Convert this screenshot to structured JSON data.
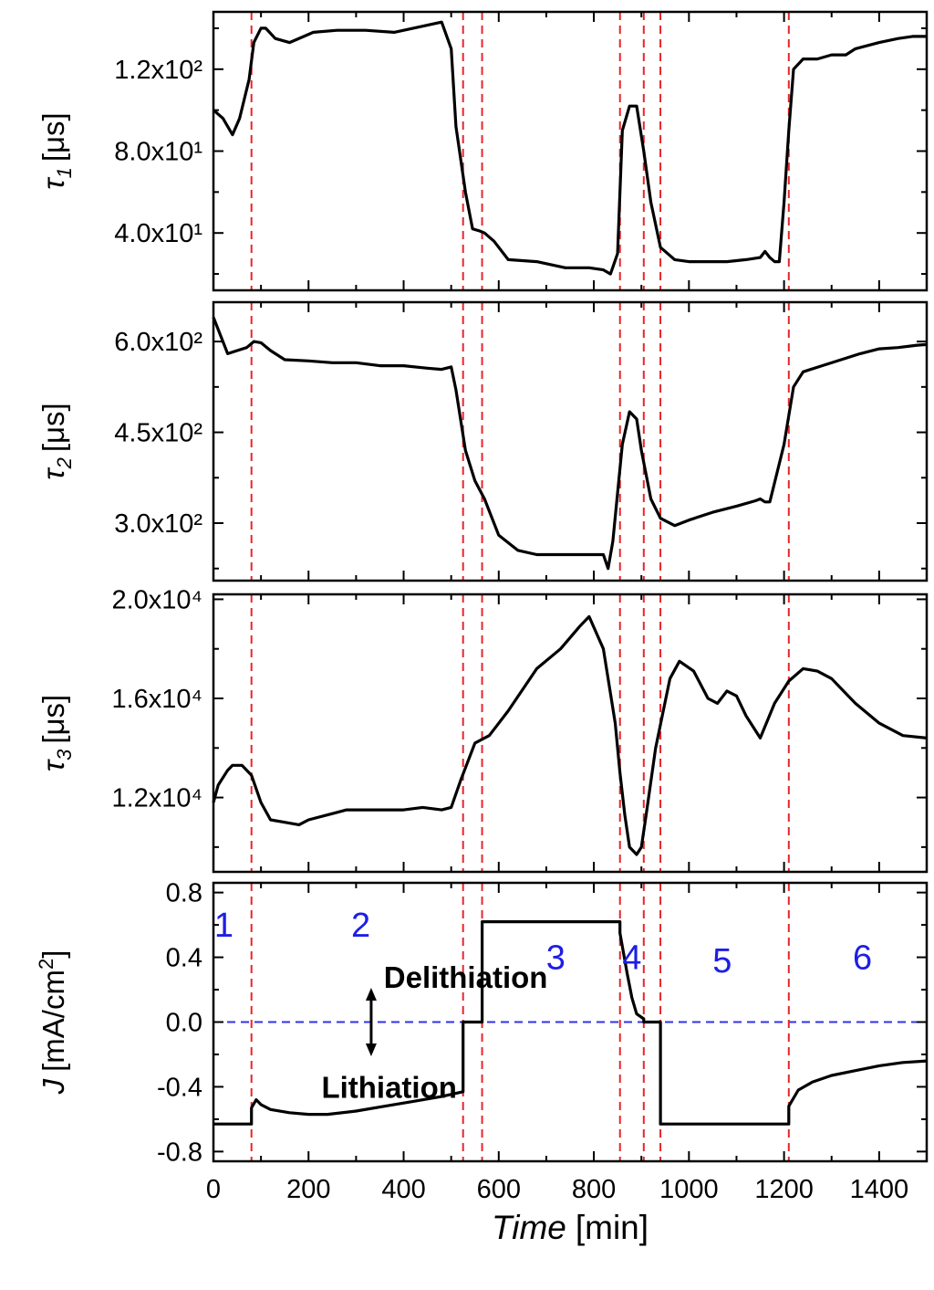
{
  "chart_data": {
    "type": "line",
    "title": "",
    "shared_x": {
      "label_italic": "Time",
      "label_unit": "[min]",
      "xlim": [
        0,
        1500
      ],
      "ticks": [
        0,
        200,
        400,
        600,
        800,
        1000,
        1200,
        1400
      ],
      "tick_labels": [
        "0",
        "200",
        "400",
        "600",
        "800",
        "1000",
        "1200",
        "1400"
      ]
    },
    "vlines": [
      80,
      525,
      565,
      855,
      905,
      940,
      1210
    ],
    "vline_color": "#e8262a",
    "line_color": "#000000",
    "panels": [
      {
        "id": "tau1",
        "ylabel_sym": "τ",
        "ylabel_sub": "1",
        "ylabel_unit": "[μs]",
        "ylim": [
          12,
          148
        ],
        "ticks": [
          40,
          80,
          120
        ],
        "tick_labels": [
          "4.0x10¹",
          "8.0x10¹",
          "1.2x10²"
        ],
        "x": [
          0,
          20,
          40,
          55,
          75,
          85,
          100,
          110,
          130,
          160,
          190,
          210,
          260,
          320,
          380,
          440,
          480,
          500,
          510,
          530,
          545,
          560,
          570,
          590,
          620,
          680,
          740,
          790,
          820,
          835,
          850,
          860,
          875,
          890,
          905,
          920,
          940,
          970,
          1000,
          1040,
          1080,
          1120,
          1150,
          1160,
          1170,
          1180,
          1190,
          1200,
          1210,
          1220,
          1240,
          1270,
          1300,
          1330,
          1350,
          1400,
          1440,
          1470,
          1500
        ],
        "y": [
          100,
          96,
          88,
          96,
          115,
          133,
          140,
          140,
          135,
          133,
          136,
          138,
          139,
          139,
          138,
          141,
          143,
          130,
          92,
          60,
          42,
          41,
          40,
          36,
          27,
          26,
          23,
          23,
          22,
          20,
          30,
          90,
          102,
          102,
          80,
          55,
          33,
          27,
          26,
          26,
          26,
          27,
          28,
          31,
          28,
          26,
          26,
          55,
          90,
          120,
          125,
          125,
          127,
          127,
          130,
          133,
          135,
          136,
          136
        ]
      },
      {
        "id": "tau2",
        "ylabel_sym": "τ",
        "ylabel_sub": "2",
        "ylabel_unit": "[μs]",
        "ylim": [
          205,
          665
        ],
        "ticks": [
          300,
          450,
          600
        ],
        "tick_labels": [
          "3.0x10²",
          "4.5x10²",
          "6.0x10²"
        ],
        "x": [
          0,
          15,
          30,
          50,
          70,
          85,
          100,
          120,
          150,
          200,
          250,
          300,
          350,
          400,
          450,
          480,
          500,
          510,
          530,
          550,
          570,
          600,
          640,
          680,
          740,
          790,
          820,
          830,
          840,
          860,
          875,
          890,
          900,
          920,
          940,
          970,
          1000,
          1050,
          1100,
          1140,
          1150,
          1160,
          1170,
          1200,
          1220,
          1240,
          1280,
          1320,
          1360,
          1400,
          1440,
          1480,
          1500
        ],
        "y": [
          640,
          610,
          580,
          585,
          590,
          600,
          598,
          585,
          570,
          568,
          565,
          565,
          560,
          560,
          556,
          554,
          558,
          520,
          420,
          370,
          340,
          280,
          255,
          248,
          248,
          248,
          248,
          225,
          270,
          430,
          484,
          472,
          420,
          340,
          308,
          296,
          305,
          318,
          328,
          337,
          340,
          335,
          335,
          430,
          525,
          550,
          560,
          570,
          580,
          588,
          590,
          594,
          595
        ]
      },
      {
        "id": "tau3",
        "ylabel_sym": "τ",
        "ylabel_sub": "3",
        "ylabel_unit": "[μs]",
        "ylim": [
          9000,
          20200
        ],
        "ticks": [
          12000,
          16000,
          20000
        ],
        "tick_labels": [
          "1.2x10⁴",
          "1.6x10⁴",
          "2.0x10⁴"
        ],
        "x": [
          0,
          10,
          30,
          40,
          60,
          80,
          100,
          120,
          150,
          180,
          200,
          240,
          280,
          320,
          360,
          400,
          440,
          480,
          500,
          520,
          550,
          580,
          620,
          680,
          730,
          770,
          790,
          820,
          845,
          855,
          865,
          875,
          890,
          900,
          910,
          930,
          960,
          980,
          1010,
          1040,
          1060,
          1080,
          1100,
          1120,
          1150,
          1180,
          1210,
          1240,
          1270,
          1300,
          1350,
          1400,
          1450,
          1500
        ],
        "y": [
          11800,
          12500,
          13100,
          13300,
          13300,
          12900,
          11800,
          11100,
          11000,
          10900,
          11100,
          11300,
          11500,
          11500,
          11500,
          11500,
          11600,
          11500,
          11600,
          12700,
          14200,
          14500,
          15500,
          17200,
          18000,
          18900,
          19300,
          18000,
          15000,
          13000,
          11300,
          10000,
          9700,
          10000,
          11300,
          14000,
          16800,
          17500,
          17100,
          16000,
          15800,
          16300,
          16100,
          15300,
          14400,
          15800,
          16700,
          17200,
          17100,
          16800,
          15800,
          15000,
          14500,
          14400
        ]
      },
      {
        "id": "J",
        "ylabel_sym": "J",
        "ylabel_unit": "[mA/cm",
        "ylabel_sup": "2",
        "ylabel_close": "]",
        "ylim": [
          -0.86,
          0.86
        ],
        "ticks": [
          -0.8,
          -0.4,
          0.0,
          0.4,
          0.8
        ],
        "tick_labels": [
          "-0.8",
          "-0.4",
          "0.0",
          "0.4",
          "0.8"
        ],
        "zero_line_color": "#3232e6",
        "x": [
          0,
          80,
          80,
          90,
          100,
          120,
          160,
          200,
          240,
          300,
          360,
          420,
          480,
          525,
          525,
          545,
          545,
          565,
          565,
          855,
          855,
          870,
          880,
          890,
          905,
          905,
          940,
          940,
          1210,
          1210,
          1230,
          1260,
          1300,
          1350,
          1400,
          1450,
          1500
        ],
        "y": [
          -0.63,
          -0.63,
          -0.53,
          -0.48,
          -0.51,
          -0.54,
          -0.56,
          -0.57,
          -0.57,
          -0.55,
          -0.52,
          -0.49,
          -0.46,
          -0.43,
          0.0,
          0.0,
          0.0,
          0.0,
          0.62,
          0.62,
          0.55,
          0.3,
          0.15,
          0.05,
          0.02,
          0.0,
          0.0,
          -0.63,
          -0.63,
          -0.52,
          -0.42,
          -0.37,
          -0.33,
          -0.3,
          -0.27,
          -0.25,
          -0.24
        ],
        "region_labels": [
          {
            "text": "1",
            "x": 22,
            "y": 0.6
          },
          {
            "text": "2",
            "x": 310,
            "y": 0.6
          },
          {
            "text": "3",
            "x": 720,
            "y": 0.4
          },
          {
            "text": "4",
            "x": 880,
            "y": 0.4
          },
          {
            "text": "5",
            "x": 1070,
            "y": 0.38
          },
          {
            "text": "6",
            "x": 1365,
            "y": 0.4
          }
        ],
        "annotations": {
          "delithiation": "Delithiation",
          "lithiation": "Lithiation",
          "delithiation_x": 310,
          "delithiation_y": 0.28,
          "lithiation_x": 360,
          "lithiation_y": -0.4,
          "arrow_x": 255,
          "arrow_top": 0.2,
          "arrow_bottom": -0.2
        }
      }
    ]
  }
}
